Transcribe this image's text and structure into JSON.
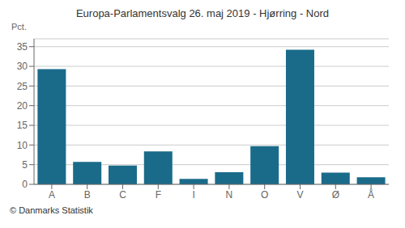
{
  "chart_data": {
    "type": "bar",
    "title": "Europa-Parlamentsvalg 26. maj 2019 - Hjørring - Nord",
    "ylabel": "Pct.",
    "annotations": [
      "© Danmarks Statistik"
    ],
    "categories": [
      "A",
      "B",
      "C",
      "F",
      "I",
      "N",
      "O",
      "V",
      "Ø",
      "Å"
    ],
    "values": [
      29.3,
      5.7,
      4.8,
      8.4,
      1.4,
      3.1,
      9.7,
      34.2,
      3.0,
      1.8
    ],
    "color": "#1a6b8a",
    "ylim": [
      0,
      37
    ],
    "yticks": [
      0,
      5,
      10,
      15,
      20,
      25,
      30,
      35
    ],
    "grid": true
  }
}
